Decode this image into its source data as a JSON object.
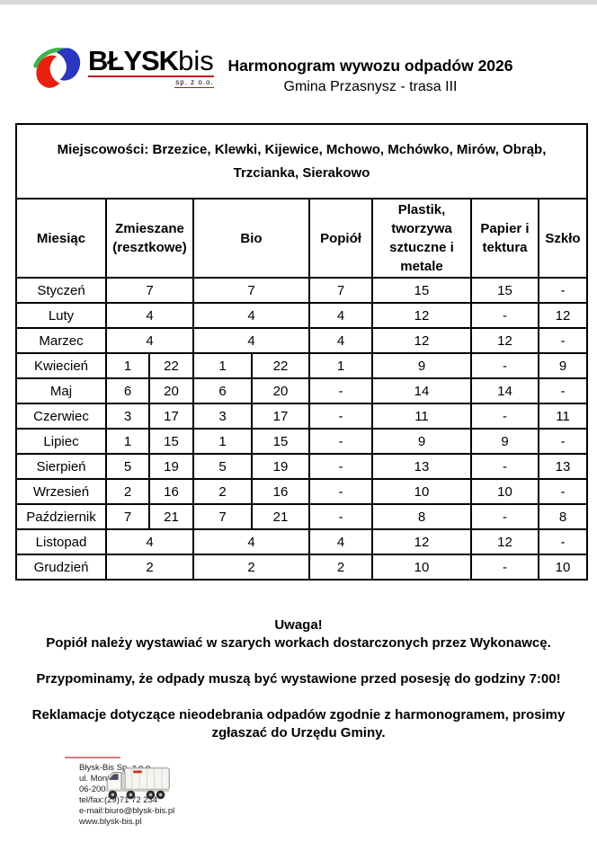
{
  "window": {
    "top_bar_color": "#d8d8d8"
  },
  "header": {
    "logo": {
      "brand_main": "BŁYSK",
      "brand_suffix": "bis",
      "brand_sub": "sp. z o.o.",
      "colors": {
        "green": "#3cb44a",
        "blue": "#2a35c0",
        "red": "#e8200f",
        "underline": "#c0170d"
      }
    },
    "title": "Harmonogram wywozu odpadów 2026",
    "subtitle": "Gmina Przasnysz - trasa III"
  },
  "schedule": {
    "localities": "Miejscowości: Brzezice, Klewki,  Kijewice, Mchowo, Mchówko, Mirów, Obrąb, Trzcianka, Sierakowo",
    "columns": [
      {
        "label": "Miesiąc",
        "span": 1
      },
      {
        "label": "Zmieszane (resztkowe)",
        "span": 2
      },
      {
        "label": "Bio",
        "span": 2
      },
      {
        "label": "Popiół",
        "span": 1
      },
      {
        "label": "Plastik, tworzywa sztuczne i metale",
        "span": 1
      },
      {
        "label": "Papier i tektura",
        "span": 1
      },
      {
        "label": "Szkło",
        "span": 1
      }
    ],
    "rows": [
      {
        "month": "Styczeń",
        "cells": [
          {
            "t": "7",
            "cs": 2
          },
          {
            "t": "7",
            "cs": 2
          },
          {
            "t": "7"
          },
          {
            "t": "15"
          },
          {
            "t": "15"
          },
          {
            "t": "-"
          }
        ]
      },
      {
        "month": "Luty",
        "cells": [
          {
            "t": "4",
            "cs": 2
          },
          {
            "t": "4",
            "cs": 2
          },
          {
            "t": "4"
          },
          {
            "t": "12"
          },
          {
            "t": "-"
          },
          {
            "t": "12"
          }
        ]
      },
      {
        "month": "Marzec",
        "cells": [
          {
            "t": "4",
            "cs": 2
          },
          {
            "t": "4",
            "cs": 2
          },
          {
            "t": "4"
          },
          {
            "t": "12"
          },
          {
            "t": "12"
          },
          {
            "t": "-"
          }
        ]
      },
      {
        "month": "Kwiecień",
        "cells": [
          {
            "t": "1"
          },
          {
            "t": "22"
          },
          {
            "t": "1"
          },
          {
            "t": "22"
          },
          {
            "t": "1"
          },
          {
            "t": "9"
          },
          {
            "t": "-"
          },
          {
            "t": "9"
          }
        ]
      },
      {
        "month": "Maj",
        "cells": [
          {
            "t": "6"
          },
          {
            "t": "20"
          },
          {
            "t": "6"
          },
          {
            "t": "20"
          },
          {
            "t": "-"
          },
          {
            "t": "14"
          },
          {
            "t": "14"
          },
          {
            "t": "-"
          }
        ]
      },
      {
        "month": "Czerwiec",
        "cells": [
          {
            "t": "3"
          },
          {
            "t": "17"
          },
          {
            "t": "3"
          },
          {
            "t": "17"
          },
          {
            "t": "-"
          },
          {
            "t": "11"
          },
          {
            "t": "-"
          },
          {
            "t": "11"
          }
        ]
      },
      {
        "month": "Lipiec",
        "cells": [
          {
            "t": "1"
          },
          {
            "t": "15"
          },
          {
            "t": "1"
          },
          {
            "t": "15"
          },
          {
            "t": "-"
          },
          {
            "t": "9"
          },
          {
            "t": "9"
          },
          {
            "t": "-"
          }
        ]
      },
      {
        "month": "Sierpień",
        "cells": [
          {
            "t": "5"
          },
          {
            "t": "19"
          },
          {
            "t": "5"
          },
          {
            "t": "19"
          },
          {
            "t": "-"
          },
          {
            "t": "13"
          },
          {
            "t": "-"
          },
          {
            "t": "13"
          }
        ]
      },
      {
        "month": "Wrzesień",
        "cells": [
          {
            "t": "2"
          },
          {
            "t": "16"
          },
          {
            "t": "2"
          },
          {
            "t": "16"
          },
          {
            "t": "-"
          },
          {
            "t": "10"
          },
          {
            "t": "10"
          },
          {
            "t": "-"
          }
        ]
      },
      {
        "month": "Październik",
        "cells": [
          {
            "t": "7"
          },
          {
            "t": "21"
          },
          {
            "t": "7"
          },
          {
            "t": "21"
          },
          {
            "t": "-"
          },
          {
            "t": "8"
          },
          {
            "t": "-"
          },
          {
            "t": "8"
          }
        ]
      },
      {
        "month": "Listopad",
        "cells": [
          {
            "t": "4",
            "cs": 2
          },
          {
            "t": "4",
            "cs": 2
          },
          {
            "t": "4"
          },
          {
            "t": "12"
          },
          {
            "t": "12"
          },
          {
            "t": "-"
          }
        ]
      },
      {
        "month": "Grudzień",
        "cells": [
          {
            "t": "2",
            "cs": 2
          },
          {
            "t": "2",
            "cs": 2
          },
          {
            "t": "2"
          },
          {
            "t": "10"
          },
          {
            "t": "-"
          },
          {
            "t": "10"
          }
        ]
      }
    ]
  },
  "notes": {
    "items": [
      "Uwaga!",
      "Popiół należy wystawiać w szarych workach dostarczonych przez Wykonawcę.",
      "Przypominamy, że odpady muszą być wystawione przed posesję do godziny 7:00!",
      "Reklamacje dotyczące nieodebrania odpadów zgodnie z harmonogramem, prosimy zgłaszać do Urzędu Gminy."
    ]
  },
  "footer": {
    "rule_color": "#d97b7b",
    "truck_icon": "garbage-truck",
    "company": [
      "Błysk-Bis Sp. z o.o.",
      "ul. Moniuszki 108",
      "06-200 Maków Maz.",
      "tel/fax:(29)71 72 234",
      "e-mail:biuro@blysk-bis.pl",
      "www.blysk-bis.pl"
    ]
  }
}
